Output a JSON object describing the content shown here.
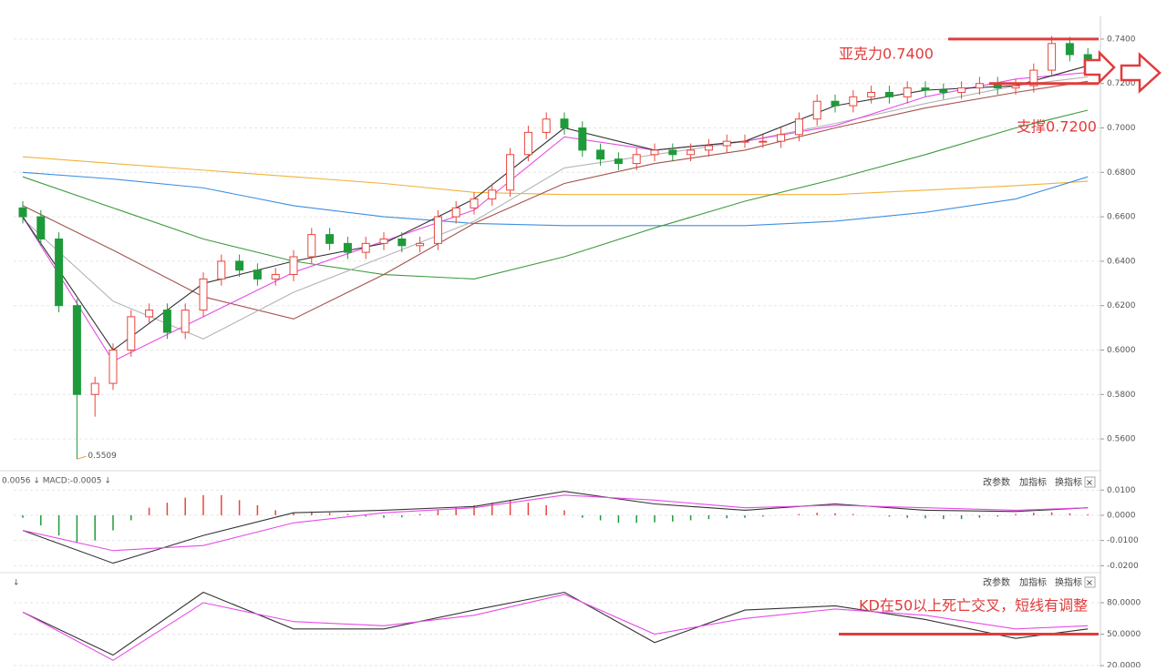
{
  "chart_data": [
    {
      "type": "candlestick",
      "open": [
        0.664,
        0.66,
        0.65,
        0.62,
        0.58,
        0.585,
        0.6,
        0.615,
        0.618,
        0.608,
        0.618,
        0.632,
        0.64,
        0.636,
        0.632,
        0.634,
        0.642,
        0.652,
        0.648,
        0.644,
        0.648,
        0.65,
        0.647,
        0.648,
        0.66,
        0.664,
        0.668,
        0.672,
        0.688,
        0.698,
        0.704,
        0.7,
        0.69,
        0.686,
        0.684,
        0.688,
        0.69,
        0.688,
        0.69,
        0.692,
        0.694,
        0.694,
        0.694,
        0.697,
        0.704,
        0.712,
        0.71,
        0.714,
        0.716,
        0.714,
        0.718,
        0.717,
        0.716,
        0.718,
        0.72,
        0.718,
        0.719,
        0.726,
        0.738,
        0.733
      ],
      "close": [
        0.66,
        0.65,
        0.62,
        0.58,
        0.585,
        0.6,
        0.615,
        0.618,
        0.608,
        0.618,
        0.632,
        0.64,
        0.636,
        0.632,
        0.634,
        0.642,
        0.652,
        0.648,
        0.644,
        0.648,
        0.65,
        0.647,
        0.648,
        0.66,
        0.664,
        0.668,
        0.672,
        0.688,
        0.698,
        0.704,
        0.7,
        0.69,
        0.686,
        0.684,
        0.688,
        0.69,
        0.688,
        0.69,
        0.692,
        0.694,
        0.694,
        0.694,
        0.697,
        0.704,
        0.712,
        0.71,
        0.714,
        0.716,
        0.714,
        0.718,
        0.717,
        0.716,
        0.718,
        0.72,
        0.718,
        0.719,
        0.726,
        0.738,
        0.733,
        0.728
      ],
      "high": [
        0.667,
        0.663,
        0.653,
        0.623,
        0.588,
        0.603,
        0.618,
        0.621,
        0.621,
        0.621,
        0.635,
        0.643,
        0.643,
        0.639,
        0.637,
        0.645,
        0.655,
        0.655,
        0.651,
        0.651,
        0.653,
        0.653,
        0.651,
        0.663,
        0.667,
        0.671,
        0.675,
        0.691,
        0.701,
        0.707,
        0.707,
        0.703,
        0.693,
        0.689,
        0.691,
        0.693,
        0.693,
        0.693,
        0.695,
        0.697,
        0.697,
        0.697,
        0.7,
        0.707,
        0.715,
        0.715,
        0.717,
        0.719,
        0.719,
        0.721,
        0.721,
        0.72,
        0.721,
        0.723,
        0.723,
        0.722,
        0.729,
        0.7414,
        0.741,
        0.736
      ],
      "low": [
        0.657,
        0.647,
        0.617,
        0.5509,
        0.57,
        0.582,
        0.597,
        0.612,
        0.605,
        0.605,
        0.615,
        0.629,
        0.633,
        0.629,
        0.629,
        0.631,
        0.639,
        0.645,
        0.641,
        0.641,
        0.645,
        0.644,
        0.644,
        0.645,
        0.657,
        0.661,
        0.665,
        0.669,
        0.685,
        0.695,
        0.697,
        0.687,
        0.683,
        0.681,
        0.681,
        0.685,
        0.685,
        0.685,
        0.687,
        0.689,
        0.691,
        0.691,
        0.691,
        0.694,
        0.701,
        0.707,
        0.707,
        0.711,
        0.711,
        0.711,
        0.714,
        0.713,
        0.713,
        0.715,
        0.715,
        0.715,
        0.716,
        0.723,
        0.73,
        0.725
      ],
      "up_color": "#e8453c",
      "down_color": "#1f9a3a",
      "series": [
        {
          "color": "#f2b23a",
          "x": [
            0,
            5,
            10,
            15,
            20,
            25,
            30,
            35,
            40,
            45,
            50,
            55,
            59
          ],
          "values": [
            0.687,
            0.684,
            0.681,
            0.678,
            0.675,
            0.671,
            0.67,
            0.67,
            0.67,
            0.67,
            0.672,
            0.674,
            0.676
          ]
        },
        {
          "color": "#3d8fe0",
          "x": [
            0,
            5,
            10,
            15,
            20,
            25,
            30,
            35,
            40,
            45,
            50,
            55,
            59
          ],
          "values": [
            0.68,
            0.677,
            0.673,
            0.665,
            0.66,
            0.657,
            0.656,
            0.656,
            0.656,
            0.658,
            0.662,
            0.668,
            0.678
          ]
        },
        {
          "color": "#3f9a3f",
          "x": [
            0,
            5,
            10,
            15,
            20,
            25,
            30,
            35,
            40,
            45,
            50,
            55,
            59
          ],
          "values": [
            0.678,
            0.664,
            0.65,
            0.64,
            0.634,
            0.632,
            0.642,
            0.655,
            0.667,
            0.677,
            0.688,
            0.7,
            0.708
          ]
        },
        {
          "color": "#a4524c",
          "x": [
            0,
            5,
            10,
            15,
            20,
            25,
            30,
            35,
            40,
            45,
            50,
            55,
            59
          ],
          "values": [
            0.665,
            0.645,
            0.624,
            0.614,
            0.634,
            0.657,
            0.675,
            0.684,
            0.69,
            0.7,
            0.709,
            0.716,
            0.721
          ]
        },
        {
          "color": "#b4b4b4",
          "x": [
            0,
            5,
            10,
            15,
            20,
            25,
            30,
            35,
            40,
            45,
            50,
            55,
            59
          ],
          "values": [
            0.659,
            0.622,
            0.605,
            0.626,
            0.642,
            0.658,
            0.682,
            0.688,
            0.694,
            0.702,
            0.711,
            0.719,
            0.723
          ]
        },
        {
          "color": "#e84be8",
          "x": [
            0,
            5,
            10,
            15,
            20,
            25,
            30,
            35,
            40,
            45,
            50,
            55,
            59
          ],
          "values": [
            0.66,
            0.595,
            0.615,
            0.635,
            0.649,
            0.663,
            0.696,
            0.69,
            0.694,
            0.701,
            0.714,
            0.722,
            0.725
          ]
        },
        {
          "color": "#333333",
          "x": [
            0,
            5,
            10,
            15,
            20,
            25,
            30,
            35,
            40,
            45,
            50,
            55,
            59
          ],
          "values": [
            0.66,
            0.6,
            0.63,
            0.64,
            0.648,
            0.668,
            0.7,
            0.69,
            0.694,
            0.71,
            0.717,
            0.719,
            0.728
          ]
        }
      ],
      "low_label": 0.5509,
      "ylim": [
        0.5465,
        0.7494
      ],
      "yticks": [
        {
          "value": 0.74,
          "label": "0.7400"
        },
        {
          "value": 0.72,
          "label": "0.7200"
        },
        {
          "value": 0.7,
          "label": "0.7000"
        },
        {
          "value": 0.68,
          "label": "0.6800"
        },
        {
          "value": 0.66,
          "label": "0.6600"
        },
        {
          "value": 0.64,
          "label": "0.6400"
        },
        {
          "value": 0.62,
          "label": "0.6200"
        },
        {
          "value": 0.6,
          "label": "0.6000"
        },
        {
          "value": 0.58,
          "label": "0.5800"
        },
        {
          "value": 0.56,
          "label": "0.5600"
        }
      ],
      "grid": true,
      "annotations": [
        {
          "text": "亚克力0.7400",
          "value": 0.74,
          "color": "#e23b3b"
        },
        {
          "text": "支撑0.7200",
          "value": 0.72,
          "color": "#e23b3b"
        }
      ]
    },
    {
      "type": "macd",
      "legend_text": "0.0056 ↓ MACD:-0.0005 ↓",
      "buttons": [
        "改参数",
        "加指标",
        "换指标",
        "×"
      ],
      "histogram": [
        -0.001,
        -0.004,
        -0.008,
        -0.011,
        -0.01,
        -0.006,
        -0.002,
        0.003,
        0.005,
        0.007,
        0.008,
        0.008,
        0.006,
        0.004,
        0.002,
        0.001,
        0.0015,
        0.001,
        0.0005,
        -0.0005,
        -0.001,
        -0.0008,
        0.0005,
        0.002,
        0.003,
        0.004,
        0.005,
        0.006,
        0.005,
        0.004,
        0.002,
        -0.001,
        -0.002,
        -0.003,
        -0.003,
        -0.0028,
        -0.0025,
        -0.002,
        -0.0015,
        -0.0012,
        -0.001,
        -0.0005,
        0,
        0.0005,
        0.001,
        0.0008,
        0.0005,
        0,
        -0.0005,
        -0.001,
        -0.0012,
        -0.0015,
        -0.0015,
        -0.001,
        -0.0005,
        0.0005,
        0.001,
        0.0012,
        0.0008,
        0.0004
      ],
      "up_color": "#e8453c",
      "down_color": "#1f9a3a",
      "series": [
        {
          "color": "#333333",
          "x": [
            0,
            5,
            10,
            15,
            20,
            25,
            30,
            35,
            40,
            45,
            50,
            55,
            59
          ],
          "values": [
            -0.006,
            -0.019,
            -0.008,
            0.001,
            0.002,
            0.0035,
            0.0095,
            0.0045,
            0.002,
            0.0045,
            0.002,
            0.0015,
            0.003
          ]
        },
        {
          "color": "#e84be8",
          "x": [
            0,
            5,
            10,
            15,
            20,
            25,
            30,
            35,
            40,
            45,
            50,
            55,
            59
          ],
          "values": [
            -0.006,
            -0.014,
            -0.012,
            -0.003,
            0.001,
            0.003,
            0.008,
            0.006,
            0.003,
            0.004,
            0.003,
            0.002,
            0.003
          ]
        }
      ],
      "ylim": [
        -0.0224,
        0.0166
      ],
      "yticks": [
        {
          "value": 0.01,
          "label": "0.0100"
        },
        {
          "value": 0,
          "label": "0.0000"
        },
        {
          "value": -0.01,
          "label": "-0.0100"
        },
        {
          "value": -0.02,
          "label": "-0.0200"
        }
      ],
      "grid": true
    },
    {
      "type": "kd",
      "legend_text": "↓",
      "buttons": [
        "改参数",
        "加指标",
        "换指标",
        "×"
      ],
      "series": [
        {
          "color": "#333333",
          "x": [
            0,
            5,
            10,
            15,
            20,
            25,
            30,
            35,
            40,
            45,
            50,
            55,
            59
          ],
          "values": [
            71,
            30,
            90,
            55,
            55,
            73,
            90,
            42,
            73,
            77,
            64,
            46,
            55
          ]
        },
        {
          "color": "#e84be8",
          "x": [
            0,
            5,
            10,
            15,
            20,
            25,
            30,
            35,
            40,
            45,
            50,
            55,
            59
          ],
          "values": [
            71,
            25,
            80,
            62,
            58,
            68,
            88,
            50,
            65,
            74,
            68,
            55,
            58
          ]
        }
      ],
      "ylim": [
        18.3,
        106.1
      ],
      "yticks": [
        {
          "value": 80,
          "label": "80.0000"
        },
        {
          "value": 50,
          "label": "50.0000"
        },
        {
          "value": 20,
          "label": "20.0000"
        }
      ],
      "grid": true,
      "annotations": [
        {
          "text": "KD在50以上死亡交叉，短线有调整",
          "value": 50,
          "color": "#e23b3b"
        }
      ]
    }
  ]
}
